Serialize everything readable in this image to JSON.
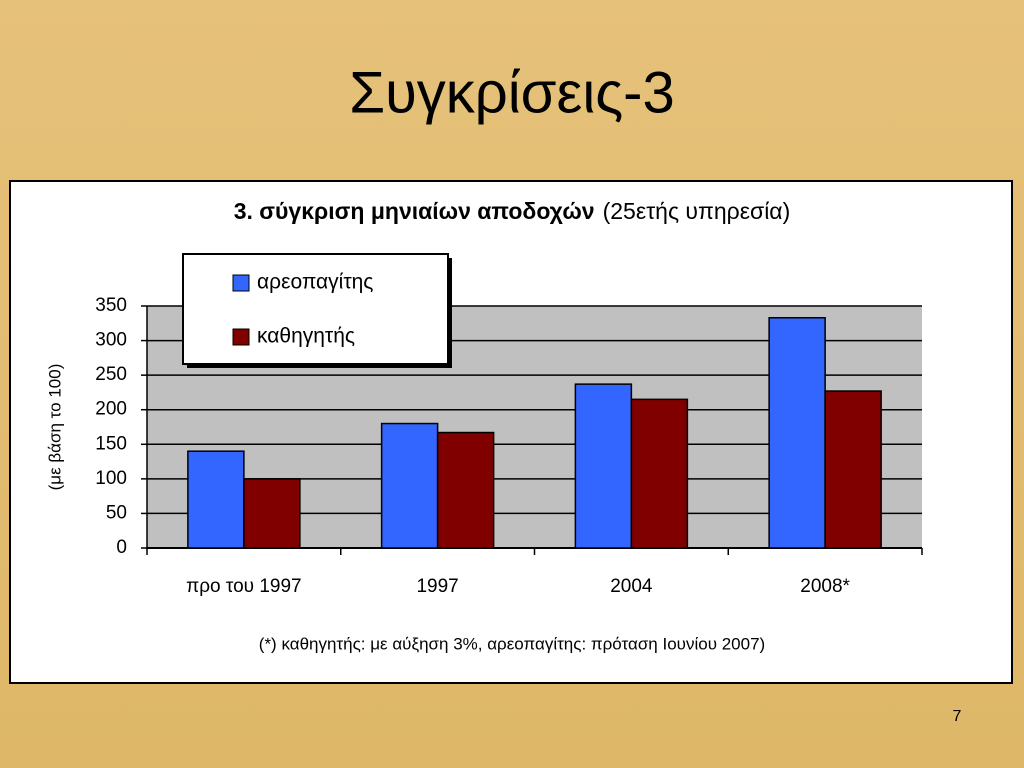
{
  "slide_title": "Συγκρίσεις-3",
  "page_number": "7",
  "chart_data": {
    "type": "bar",
    "title": "3. σύγκριση μηνιαίων αποδοχών",
    "subtitle": "(25ετής υπηρεσία)",
    "y_label": "(με βάση το 100)",
    "categories": [
      "προ του 1997",
      "1997",
      "2004",
      "2008*"
    ],
    "series": [
      {
        "name": "αρεοπαγίτης",
        "color": "#3366ff",
        "values": [
          140,
          180,
          237,
          333
        ]
      },
      {
        "name": "καθηγητής",
        "color": "#800000",
        "values": [
          100,
          167,
          215,
          227
        ]
      }
    ],
    "ylim": [
      0,
      350
    ],
    "yticks": [
      0,
      50,
      100,
      150,
      200,
      250,
      300,
      350
    ],
    "grid": true,
    "legend": "top-left",
    "footnote": "(*) καθηγητής: με αύξηση 3%, αρεοπαγίτης: πρόταση Ιουνίου 2007)"
  }
}
